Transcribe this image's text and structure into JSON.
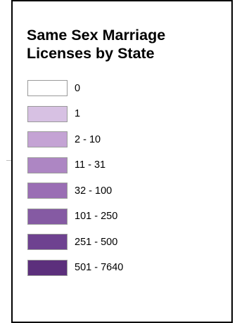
{
  "legend": {
    "title_line1": "Same Sex Marriage",
    "title_line2": "Licenses by State",
    "items": [
      {
        "label": "0",
        "color": "#ffffff"
      },
      {
        "label": "1",
        "color": "#d7c1e3"
      },
      {
        "label": "2 - 10",
        "color": "#c4a3d4"
      },
      {
        "label": "11 - 31",
        "color": "#ad86c3"
      },
      {
        "label": "32 - 100",
        "color": "#9a6eb4"
      },
      {
        "label": "101 - 250",
        "color": "#855aa3"
      },
      {
        "label": "251 - 500",
        "color": "#6e4290"
      },
      {
        "label": "501 - 7640",
        "color": "#5c2f7c"
      }
    ]
  }
}
